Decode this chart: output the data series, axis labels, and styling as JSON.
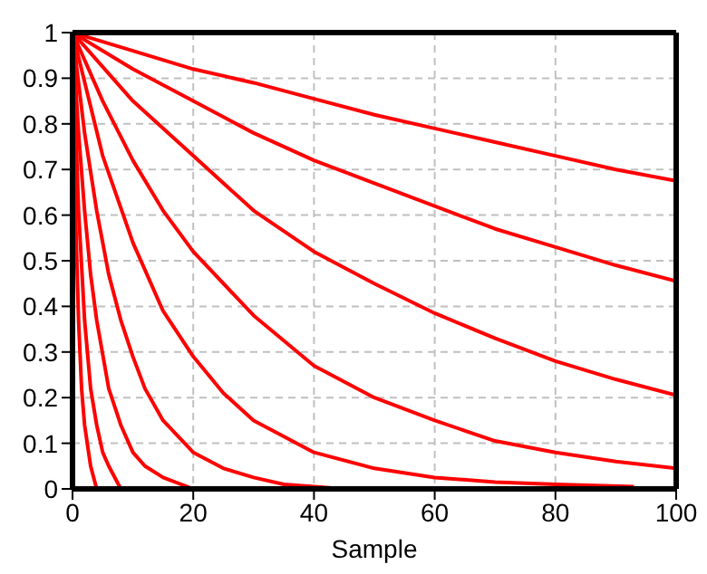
{
  "chart_data": {
    "type": "line",
    "xlabel": "Sample",
    "xlim": [
      0,
      100
    ],
    "xticks": [
      0,
      20,
      40,
      60,
      80,
      100
    ],
    "ylim": [
      0,
      1
    ],
    "yticks": [
      0,
      0.1,
      0.2,
      0.3,
      0.4,
      0.5,
      0.6,
      0.7,
      0.8,
      0.9,
      1
    ],
    "grid": true,
    "legend": false,
    "marker": "none",
    "line_style": "solid",
    "series": [
      {
        "color": "#ff0000",
        "x": [
          0,
          10,
          20,
          30,
          40,
          50,
          60,
          70,
          80,
          90,
          100
        ],
        "values": [
          1,
          0.96,
          0.92,
          0.89,
          0.855,
          0.82,
          0.79,
          0.76,
          0.73,
          0.7,
          0.675
        ]
      },
      {
        "color": "#ff0000",
        "x": [
          0,
          10,
          20,
          30,
          40,
          50,
          60,
          70,
          80,
          90,
          100
        ],
        "values": [
          1,
          0.92,
          0.85,
          0.78,
          0.72,
          0.67,
          0.62,
          0.57,
          0.53,
          0.49,
          0.455
        ]
      },
      {
        "color": "#ff0000",
        "x": [
          0,
          10,
          20,
          30,
          40,
          50,
          60,
          70,
          80,
          90,
          100
        ],
        "values": [
          1,
          0.85,
          0.73,
          0.61,
          0.52,
          0.45,
          0.385,
          0.33,
          0.28,
          0.24,
          0.205
        ]
      },
      {
        "color": "#ff0000",
        "x": [
          0,
          5,
          10,
          15,
          20,
          30,
          40,
          50,
          60,
          70,
          80,
          90,
          100
        ],
        "values": [
          1,
          0.85,
          0.72,
          0.61,
          0.52,
          0.38,
          0.27,
          0.2,
          0.15,
          0.105,
          0.08,
          0.06,
          0.045
        ]
      },
      {
        "color": "#ff0000",
        "x": [
          0,
          5,
          10,
          15,
          20,
          25,
          30,
          40,
          50,
          60,
          70,
          80,
          93
        ],
        "values": [
          1,
          0.73,
          0.54,
          0.39,
          0.29,
          0.21,
          0.15,
          0.08,
          0.045,
          0.025,
          0.015,
          0.01,
          0.005
        ]
      },
      {
        "color": "#ff0000",
        "x": [
          0,
          2,
          4,
          6,
          8,
          10,
          12,
          15,
          20,
          25,
          30,
          35,
          45
        ],
        "values": [
          1,
          0.78,
          0.61,
          0.47,
          0.37,
          0.29,
          0.22,
          0.15,
          0.08,
          0.045,
          0.025,
          0.01,
          0
        ]
      },
      {
        "color": "#ff0000",
        "x": [
          0,
          1,
          2,
          3,
          4,
          6,
          8,
          10,
          12,
          15,
          20
        ],
        "values": [
          1,
          0.78,
          0.61,
          0.47,
          0.37,
          0.22,
          0.14,
          0.08,
          0.05,
          0.025,
          0
        ]
      },
      {
        "color": "#ff0000",
        "x": [
          0,
          1,
          2,
          3,
          4,
          5,
          6,
          8
        ],
        "values": [
          1,
          0.61,
          0.37,
          0.22,
          0.14,
          0.08,
          0.05,
          0
        ]
      },
      {
        "color": "#ff0000",
        "x": [
          0,
          0.5,
          1,
          1.5,
          2,
          3,
          4
        ],
        "values": [
          1,
          0.6,
          0.37,
          0.22,
          0.14,
          0.05,
          0
        ]
      }
    ]
  }
}
